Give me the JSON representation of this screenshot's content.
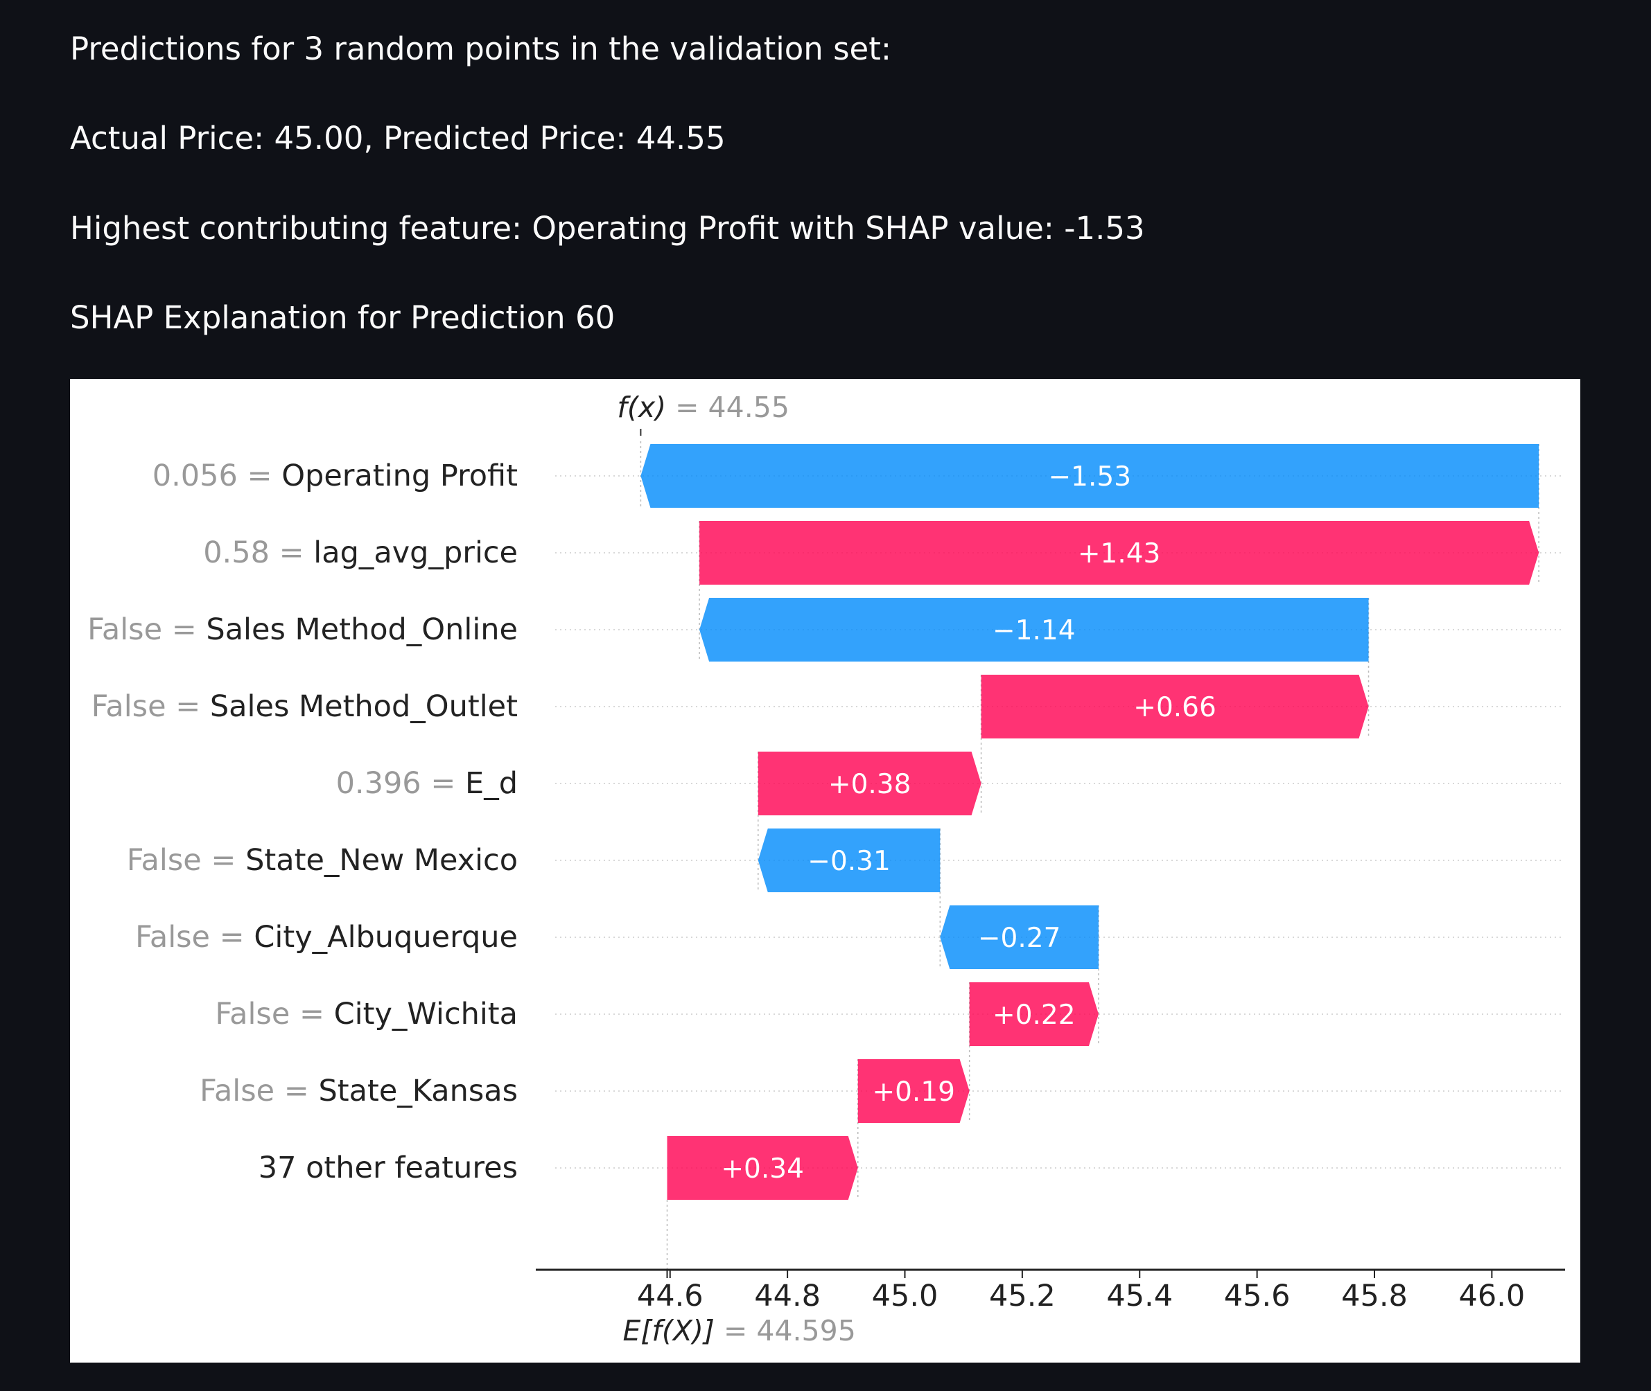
{
  "text": {
    "intro": "Predictions for 3 random points in the validation set:",
    "actual_pred": "Actual Price: 45.00, Predicted Price: 44.55",
    "highest": "Highest contributing feature: Operating Profit with SHAP value: -1.53",
    "explanation_title": "SHAP Explanation for Prediction 60"
  },
  "colors": {
    "positive": "#ff0051",
    "negative": "#008bfb",
    "page_bg": "#0f1117",
    "panel_bg": "#ffffff"
  },
  "chart_data": {
    "type": "waterfall",
    "fx_label": "f(x)",
    "fx_value": "44.55",
    "fx": 44.55,
    "efx_label": "E[f(X)]",
    "efx_value": "44.595",
    "efx": 44.595,
    "xlim": [
      44.52,
      46.12
    ],
    "xticks": [
      44.6,
      44.8,
      45.0,
      45.2,
      45.4,
      45.6,
      45.8,
      46.0
    ],
    "xtick_labels": [
      "44.6",
      "44.8",
      "45.0",
      "45.2",
      "45.4",
      "45.6",
      "45.8",
      "46.0"
    ],
    "rows": [
      {
        "value": "0.056",
        "feature": "Operating Profit",
        "shap": -1.53,
        "label": "−1.53",
        "start": 46.08,
        "end": 44.55
      },
      {
        "value": "0.58",
        "feature": "lag_avg_price",
        "shap": 1.43,
        "label": "+1.43",
        "start": 44.65,
        "end": 46.08
      },
      {
        "value": "False",
        "feature": "Sales Method_Online",
        "shap": -1.14,
        "label": "−1.14",
        "start": 45.79,
        "end": 44.65
      },
      {
        "value": "False",
        "feature": "Sales Method_Outlet",
        "shap": 0.66,
        "label": "+0.66",
        "start": 45.13,
        "end": 45.79
      },
      {
        "value": "0.396",
        "feature": "E_d",
        "shap": 0.38,
        "label": "+0.38",
        "start": 44.75,
        "end": 45.13
      },
      {
        "value": "False",
        "feature": "State_New Mexico",
        "shap": -0.31,
        "label": "−0.31",
        "start": 45.06,
        "end": 44.75
      },
      {
        "value": "False",
        "feature": "City_Albuquerque",
        "shap": -0.27,
        "label": "−0.27",
        "start": 45.33,
        "end": 45.06
      },
      {
        "value": "False",
        "feature": "City_Wichita",
        "shap": 0.22,
        "label": "+0.22",
        "start": 45.11,
        "end": 45.33
      },
      {
        "value": "False",
        "feature": "State_Kansas",
        "shap": 0.19,
        "label": "+0.19",
        "start": 44.92,
        "end": 45.11
      },
      {
        "value": "",
        "feature": "37 other features",
        "shap": 0.34,
        "label": "+0.34",
        "start": 44.595,
        "end": 44.92
      }
    ]
  }
}
